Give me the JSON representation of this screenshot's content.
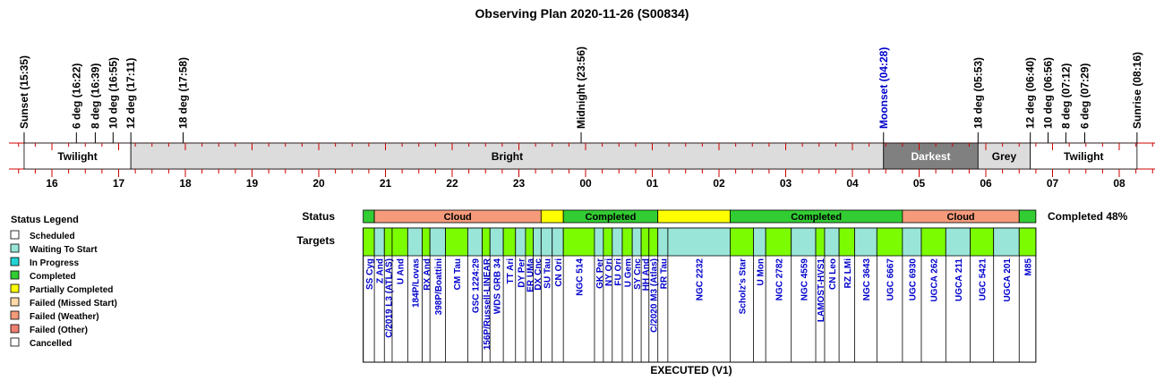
{
  "title": "Observing Plan 2020-11-26 (S00834)",
  "timeline": {
    "hour_labels": [
      "16",
      "17",
      "18",
      "19",
      "20",
      "21",
      "22",
      "23",
      "00",
      "01",
      "02",
      "03",
      "04",
      "05",
      "06",
      "07",
      "08"
    ],
    "events": [
      {
        "label": "Sunset (15:35)",
        "time": "15:35",
        "color": "#000000"
      },
      {
        "label": "6 deg (16:22)",
        "time": "16:22",
        "color": "#000000"
      },
      {
        "label": "8 deg (16:39)",
        "time": "16:39",
        "color": "#000000"
      },
      {
        "label": "10 deg (16:55)",
        "time": "16:55",
        "color": "#000000"
      },
      {
        "label": "12 deg (17:11)",
        "time": "17:11",
        "color": "#000000"
      },
      {
        "label": "18 deg (17:58)",
        "time": "17:58",
        "color": "#000000"
      },
      {
        "label": "Midnight (23:56)",
        "time": "23:56",
        "color": "#000000"
      },
      {
        "label": "Moonset (04:28)",
        "time": "04:28",
        "color": "#0000cc"
      },
      {
        "label": "18 deg (05:53)",
        "time": "05:53",
        "color": "#000000"
      },
      {
        "label": "12 deg (06:40)",
        "time": "06:40",
        "color": "#000000"
      },
      {
        "label": "10 deg (06:56)",
        "time": "06:56",
        "color": "#000000"
      },
      {
        "label": "8 deg (07:12)",
        "time": "07:12",
        "color": "#000000"
      },
      {
        "label": "6 deg (07:29)",
        "time": "07:29",
        "color": "#000000"
      },
      {
        "label": "Sunrise (08:16)",
        "time": "08:16",
        "color": "#000000"
      }
    ],
    "sky_segments": [
      {
        "label": "Twilight",
        "start": "15:35",
        "end": "17:11",
        "fill": "#ffffff",
        "text": "#000000"
      },
      {
        "label": "Bright",
        "start": "17:11",
        "end": "04:28",
        "fill": "#dcdcdc",
        "text": "#000000"
      },
      {
        "label": "Darkest",
        "start": "04:28",
        "end": "05:53",
        "fill": "#808080",
        "text": "#ffffff"
      },
      {
        "label": "Grey",
        "start": "05:53",
        "end": "06:40",
        "fill": "#dcdcdc",
        "text": "#000000"
      },
      {
        "label": "Twilight",
        "start": "06:40",
        "end": "08:16",
        "fill": "#ffffff",
        "text": "#000000"
      }
    ]
  },
  "legend": {
    "title": "Status Legend",
    "items": [
      {
        "label": "Scheduled",
        "color": "#ffffff"
      },
      {
        "label": "Waiting To Start",
        "color": "#99e6d8"
      },
      {
        "label": "In Progress",
        "color": "#22d3d3"
      },
      {
        "label": "Completed",
        "color": "#32cd32"
      },
      {
        "label": "Partially Completed",
        "color": "#ffff00"
      },
      {
        "label": "Failed (Missed Start)",
        "color": "#ffd9a8"
      },
      {
        "label": "Failed (Weather)",
        "color": "#f59a7a"
      },
      {
        "label": "Failed (Other)",
        "color": "#f08070"
      },
      {
        "label": "Cancelled",
        "color": "#ffffff"
      }
    ]
  },
  "status_row": {
    "label": "Status",
    "summary": "Completed 48%",
    "segments": [
      {
        "label": "",
        "start": "20:40",
        "end": "20:50",
        "color": "#32cd32"
      },
      {
        "label": "Cloud",
        "start": "20:50",
        "end": "23:20",
        "color": "#f59a7a"
      },
      {
        "label": "",
        "start": "23:20",
        "end": "23:40",
        "color": "#ffff00"
      },
      {
        "label": "Completed",
        "start": "23:40",
        "end": "01:05",
        "color": "#32cd32"
      },
      {
        "label": "",
        "start": "01:05",
        "end": "02:10",
        "color": "#ffff00"
      },
      {
        "label": "Completed",
        "start": "02:10",
        "end": "04:45",
        "color": "#32cd32"
      },
      {
        "label": "Cloud",
        "start": "04:45",
        "end": "06:30",
        "color": "#f59a7a"
      },
      {
        "label": "",
        "start": "06:30",
        "end": "06:45",
        "color": "#32cd32"
      }
    ]
  },
  "targets_row": {
    "label": "Targets",
    "footer": "EXECUTED (V1)",
    "colors": {
      "completed": "#7cfc00",
      "waiting": "#99e6d8"
    },
    "items": [
      {
        "name": "SS Cyg",
        "start": "20:40",
        "end": "20:50",
        "state": "completed",
        "link": true
      },
      {
        "name": "Z And",
        "start": "20:50",
        "end": "20:59",
        "state": "waiting",
        "link": true
      },
      {
        "name": "C/2019 L3 (ATLAS)",
        "start": "20:59",
        "end": "21:06",
        "state": "completed",
        "link": true
      },
      {
        "name": "U And",
        "start": "21:06",
        "end": "21:20",
        "state": "completed",
        "link": true
      },
      {
        "name": "184P/Lovas",
        "start": "21:20",
        "end": "21:33",
        "state": "waiting",
        "link": true
      },
      {
        "name": "RX And",
        "start": "21:33",
        "end": "21:40",
        "state": "completed",
        "link": true
      },
      {
        "name": "398P/Boattini",
        "start": "21:40",
        "end": "21:54",
        "state": "waiting",
        "link": true
      },
      {
        "name": "CM Tau",
        "start": "21:54",
        "end": "22:14",
        "state": "completed",
        "link": true
      },
      {
        "name": "GSC 1224:29",
        "start": "22:14",
        "end": "22:27",
        "state": "waiting",
        "link": true
      },
      {
        "name": "156P/Russell-LINEAR",
        "start": "22:27",
        "end": "22:34",
        "state": "completed",
        "link": true
      },
      {
        "name": "WDS GRB 34",
        "start": "22:34",
        "end": "22:46",
        "state": "waiting",
        "link": true
      },
      {
        "name": "TT Ari",
        "start": "22:46",
        "end": "22:57",
        "state": "completed",
        "link": true
      },
      {
        "name": "DY Per",
        "start": "22:57",
        "end": "23:06",
        "state": "waiting",
        "link": true
      },
      {
        "name": "ER UMa",
        "start": "23:06",
        "end": "23:13",
        "state": "completed",
        "link": true
      },
      {
        "name": "DX Cnc",
        "start": "23:13",
        "end": "23:20",
        "state": "waiting",
        "link": true
      },
      {
        "name": "SU Tau",
        "start": "23:20",
        "end": "23:30",
        "state": "waiting",
        "link": true
      },
      {
        "name": "CN Ori",
        "start": "23:30",
        "end": "23:40",
        "state": "waiting",
        "link": true
      },
      {
        "name": "NGC 514",
        "start": "23:40",
        "end": "00:08",
        "state": "completed",
        "link": true
      },
      {
        "name": "GK Per",
        "start": "00:08",
        "end": "00:16",
        "state": "waiting",
        "link": true
      },
      {
        "name": "NY Ori",
        "start": "00:16",
        "end": "00:24",
        "state": "completed",
        "link": true
      },
      {
        "name": "FU Ori",
        "start": "00:24",
        "end": "00:33",
        "state": "waiting",
        "link": true
      },
      {
        "name": "U Gem",
        "start": "00:33",
        "end": "00:42",
        "state": "completed",
        "link": true
      },
      {
        "name": "SY Cnc",
        "start": "00:42",
        "end": "00:50",
        "state": "waiting",
        "link": true
      },
      {
        "name": "HH And",
        "start": "00:50",
        "end": "00:57",
        "state": "completed",
        "link": true
      },
      {
        "name": "C/2020 M3 (Atlas)",
        "start": "00:57",
        "end": "01:05",
        "state": "completed",
        "link": true
      },
      {
        "name": "RR Tau",
        "start": "01:05",
        "end": "01:14",
        "state": "waiting",
        "link": true
      },
      {
        "name": "NGC 2232",
        "start": "01:14",
        "end": "02:10",
        "state": "waiting",
        "link": true
      },
      {
        "name": "Scholz's Star",
        "start": "02:10",
        "end": "02:31",
        "state": "completed",
        "link": true
      },
      {
        "name": "U Mon",
        "start": "02:31",
        "end": "02:42",
        "state": "waiting",
        "link": true
      },
      {
        "name": "NGC 2782",
        "start": "02:42",
        "end": "03:05",
        "state": "completed",
        "link": true
      },
      {
        "name": "NGC 4559",
        "start": "03:05",
        "end": "03:27",
        "state": "waiting",
        "link": true
      },
      {
        "name": "LAMOST-HVS1",
        "start": "03:27",
        "end": "03:35",
        "state": "completed",
        "link": true
      },
      {
        "name": "CN Leo",
        "start": "03:35",
        "end": "03:48",
        "state": "waiting",
        "link": true
      },
      {
        "name": "RZ LMi",
        "start": "03:48",
        "end": "04:02",
        "state": "completed",
        "link": true
      },
      {
        "name": "NGC 3643",
        "start": "04:02",
        "end": "04:22",
        "state": "waiting",
        "link": true
      },
      {
        "name": "UGC 6667",
        "start": "04:22",
        "end": "04:45",
        "state": "completed",
        "link": true
      },
      {
        "name": "UGC 6930",
        "start": "04:45",
        "end": "05:02",
        "state": "waiting",
        "link": true
      },
      {
        "name": "UGCA 262",
        "start": "05:02",
        "end": "05:24",
        "state": "completed",
        "link": true
      },
      {
        "name": "UGCA 211",
        "start": "05:24",
        "end": "05:46",
        "state": "waiting",
        "link": true
      },
      {
        "name": "UGC 5421",
        "start": "05:46",
        "end": "06:07",
        "state": "completed",
        "link": true
      },
      {
        "name": "UGCA 201",
        "start": "06:07",
        "end": "06:30",
        "state": "waiting",
        "link": true
      },
      {
        "name": "M85",
        "start": "06:30",
        "end": "06:45",
        "state": "completed",
        "link": true
      }
    ]
  }
}
